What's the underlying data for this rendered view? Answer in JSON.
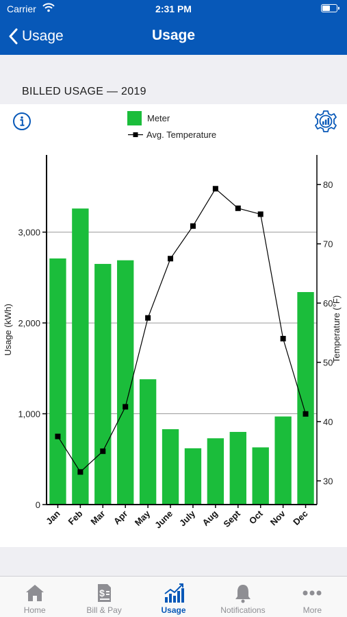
{
  "status_bar": {
    "carrier": "Carrier",
    "time": "2:31 PM"
  },
  "nav": {
    "back_label": "Usage",
    "title": "Usage"
  },
  "section_heading": "BILLED USAGE — 2019",
  "icons": {
    "info": "info-circle-icon",
    "settings": "chart-settings-gear-icon"
  },
  "colors": {
    "nav_blue": "#0758b8",
    "bar_green": "#1bbd3b",
    "line_black": "#000000"
  },
  "chart_data": {
    "type": "bar",
    "categories": [
      "Jan",
      "Feb",
      "Mar",
      "Apr",
      "May",
      "June",
      "July",
      "Aug",
      "Sept",
      "Oct",
      "Nov",
      "Dec"
    ],
    "series": [
      {
        "name": "Meter",
        "type": "bar",
        "axis": "left",
        "values": [
          2710,
          3260,
          2650,
          2690,
          1380,
          830,
          620,
          730,
          800,
          630,
          970,
          2340
        ]
      },
      {
        "name": "Avg. Temperature",
        "type": "line",
        "axis": "right",
        "values": [
          37.5,
          31.5,
          35.0,
          42.5,
          57.5,
          67.5,
          73.0,
          79.3,
          76.0,
          75.0,
          54.0,
          41.3
        ]
      }
    ],
    "xlabel": "",
    "ylabel": "Usage (kWh)",
    "ylabel_right": "Temperature (°F)",
    "ylim": [
      0,
      3850
    ],
    "ylim_right": [
      26,
      85
    ],
    "yticks": [
      0,
      1000,
      2000,
      3000
    ],
    "ytick_labels": [
      "0",
      "1,000",
      "2,000",
      "3,000"
    ],
    "yticks_right": [
      30,
      40,
      50,
      60,
      70,
      80
    ],
    "ytick_labels_right": [
      "30",
      "40",
      "50",
      "60",
      "70",
      "80"
    ],
    "grid": true,
    "legend_position": "top-center"
  },
  "tabs": [
    {
      "label": "Home",
      "icon": "home-icon",
      "active": false
    },
    {
      "label": "Bill & Pay",
      "icon": "bill-document-icon",
      "active": false
    },
    {
      "label": "Usage",
      "icon": "usage-chart-icon",
      "active": true
    },
    {
      "label": "Notifications",
      "icon": "bell-icon",
      "active": false
    },
    {
      "label": "More",
      "icon": "more-dots-icon",
      "active": false
    }
  ]
}
